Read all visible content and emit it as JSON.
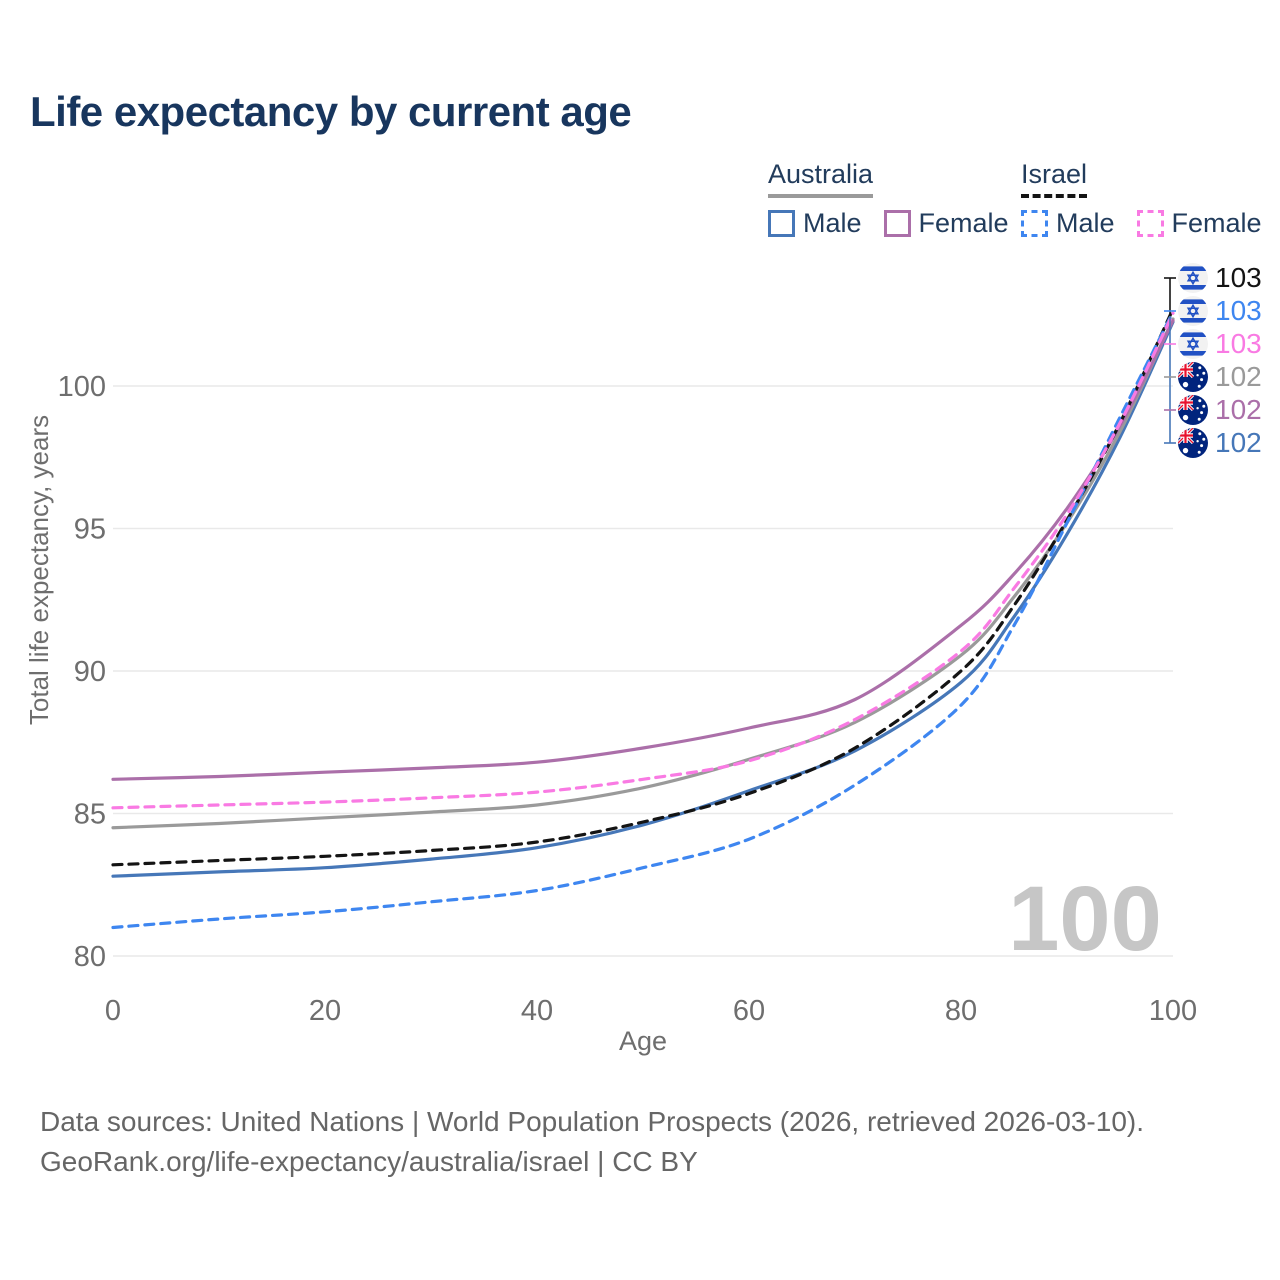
{
  "title": "Life expectancy by current age",
  "legend": {
    "groups": [
      {
        "country": "Australia",
        "line_color": "#9a9a9a",
        "line_style": "solid",
        "items": [
          {
            "label": "Male",
            "color": "#4677b8",
            "style": "solid"
          },
          {
            "label": "Female",
            "color": "#ab6fa9",
            "style": "solid"
          }
        ]
      },
      {
        "country": "Israel",
        "line_color": "#141414",
        "line_style": "dashed",
        "items": [
          {
            "label": "Male",
            "color": "#3e86f0",
            "style": "dashed"
          },
          {
            "label": "Female",
            "color": "#f97ae3",
            "style": "dashed"
          }
        ]
      }
    ]
  },
  "chart_data": {
    "type": "line",
    "title": "Life expectancy by current age",
    "xlabel": "Age",
    "ylabel": "Total life expectancy, years",
    "xlim": [
      0,
      100
    ],
    "ylim": [
      80,
      103.5
    ],
    "xticks": [
      "0",
      "20",
      "40",
      "60",
      "80",
      "100"
    ],
    "yticks": [
      "80",
      "85",
      "90",
      "95",
      "100"
    ],
    "grid": "horizontal",
    "legend_position": "top-right",
    "x": [
      0,
      10,
      20,
      30,
      40,
      50,
      60,
      70,
      80,
      85,
      90,
      95,
      100
    ],
    "series": [
      {
        "name": "Australia Male",
        "country": "Australia",
        "sex": "Male",
        "color": "#4677b8",
        "dash": "solid",
        "values": [
          82.8,
          82.95,
          83.1,
          83.4,
          83.8,
          84.6,
          85.8,
          87.2,
          89.6,
          91.9,
          94.8,
          98.2,
          102.25
        ]
      },
      {
        "name": "Australia Total",
        "country": "Australia",
        "sex": "All",
        "color": "#9a9a9a",
        "dash": "solid",
        "values": [
          84.5,
          84.65,
          84.85,
          85.05,
          85.3,
          85.9,
          86.9,
          88.2,
          90.55,
          92.6,
          95.2,
          98.4,
          102.35
        ]
      },
      {
        "name": "Australia Female",
        "country": "Australia",
        "sex": "Female",
        "color": "#ab6fa9",
        "dash": "solid",
        "values": [
          86.2,
          86.3,
          86.45,
          86.6,
          86.8,
          87.3,
          88.0,
          89.0,
          91.6,
          93.4,
          95.7,
          98.6,
          102.3
        ]
      },
      {
        "name": "Israel Total",
        "country": "Israel",
        "sex": "All",
        "color": "#141414",
        "dash": "dashed",
        "values": [
          83.2,
          83.35,
          83.5,
          83.7,
          84.0,
          84.7,
          85.7,
          87.3,
          90.0,
          92.3,
          95.3,
          98.7,
          102.7
        ]
      },
      {
        "name": "Israel Male",
        "country": "Israel",
        "sex": "Male",
        "color": "#3e86f0",
        "dash": "dashed",
        "values": [
          81.0,
          81.3,
          81.55,
          81.9,
          82.3,
          83.1,
          84.1,
          86.0,
          88.8,
          91.6,
          95.2,
          98.9,
          102.6
        ]
      },
      {
        "name": "Israel Female",
        "country": "Israel",
        "sex": "Female",
        "color": "#f97ae3",
        "dash": "dashed",
        "values": [
          85.2,
          85.3,
          85.4,
          85.55,
          85.75,
          86.2,
          86.85,
          88.3,
          90.7,
          92.9,
          95.5,
          98.7,
          102.55
        ]
      }
    ],
    "end_labels": [
      {
        "value": "103",
        "country": "Israel",
        "series": "Israel Total",
        "color": "#141414"
      },
      {
        "value": "103",
        "country": "Israel",
        "series": "Israel Male",
        "color": "#3e86f0"
      },
      {
        "value": "103",
        "country": "Israel",
        "series": "Israel Female",
        "color": "#f97ae3"
      },
      {
        "value": "102",
        "country": "Australia",
        "series": "Australia Total",
        "color": "#9a9a9a"
      },
      {
        "value": "102",
        "country": "Australia",
        "series": "Australia Female",
        "color": "#ab6fa9"
      },
      {
        "value": "102",
        "country": "Australia",
        "series": "Australia Male",
        "color": "#4677b8"
      }
    ],
    "watermark_age": "100"
  },
  "footer": {
    "line1": "Data sources: United Nations | World Population Prospects (2026, retrieved 2026-03-10).",
    "line2": "GeoRank.org/life-expectancy/australia/israel | CC BY"
  }
}
